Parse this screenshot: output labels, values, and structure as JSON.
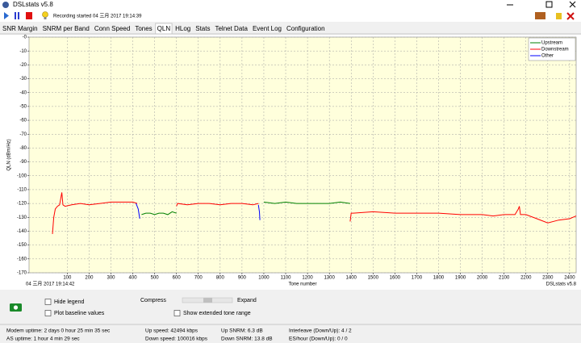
{
  "window": {
    "title": "DSLstats v5.8"
  },
  "toolbar": {
    "status": "Recording started 04 三月 2017 19:14:39"
  },
  "tabs": [
    {
      "label": "SNR Margin",
      "selected": false
    },
    {
      "label": "SNRM per Band",
      "selected": false
    },
    {
      "label": "Conn Speed",
      "selected": false
    },
    {
      "label": "Tones",
      "selected": false
    },
    {
      "label": "QLN",
      "selected": true
    },
    {
      "label": "HLog",
      "selected": false
    },
    {
      "label": "Stats",
      "selected": false
    },
    {
      "label": "Telnet Data",
      "selected": false
    },
    {
      "label": "Event Log",
      "selected": false
    },
    {
      "label": "Configuration",
      "selected": false
    }
  ],
  "chart_data": {
    "type": "line",
    "y_label": "QLN (dBm/Hz)",
    "x_label": "Tone number",
    "timestamp": "04 三月 2017 19:14:42",
    "watermark": "DSLstats v5.8",
    "xlim": [
      -75,
      2430
    ],
    "ylim": [
      -170,
      0
    ],
    "xticks": [
      100,
      200,
      300,
      400,
      500,
      600,
      700,
      800,
      900,
      1000,
      1100,
      1200,
      1300,
      1400,
      1500,
      1600,
      1700,
      1800,
      1900,
      2000,
      2100,
      2200,
      2300,
      2400
    ],
    "yticks": [
      {
        "value": 0,
        "label": "-0"
      },
      -10,
      -20,
      -30,
      -40,
      -50,
      -60,
      -70,
      -80,
      -90,
      -100,
      -110,
      -120,
      -130,
      -140,
      -150,
      -160,
      -170
    ],
    "grid": true,
    "legend": "upper right",
    "series": [
      {
        "name": "Upstream",
        "color": "#008000",
        "x": [
          440,
          460,
          480,
          500,
          520,
          540,
          560,
          580,
          600,
          800,
          1000,
          1050,
          1100,
          1150,
          1200,
          1250,
          1300,
          1350,
          1395
        ],
        "values": [
          -128,
          -127,
          -127,
          -128,
          -127,
          -127,
          -128,
          -126,
          -127,
          null,
          -119,
          -120,
          -119,
          -120,
          -120,
          -120,
          -120,
          -119,
          -120
        ]
      },
      {
        "name": "Downstream",
        "color": "#ff0000",
        "x": [
          32,
          38,
          45,
          55,
          65,
          75,
          80,
          90,
          120,
          160,
          200,
          250,
          300,
          350,
          400,
          420,
          510,
          600,
          605,
          650,
          700,
          750,
          800,
          850,
          900,
          950,
          975,
          1200,
          1395,
          1400,
          1410,
          1500,
          1600,
          1700,
          1800,
          1900,
          2000,
          2050,
          2100,
          2150,
          2165,
          2170,
          2175,
          2200,
          2250,
          2300,
          2350,
          2400,
          2430
        ],
        "values": [
          -142,
          -130,
          -124,
          -122,
          -121,
          -112,
          -121,
          -122,
          -121,
          -120,
          -121,
          -120,
          -119,
          -119,
          -119,
          -120,
          null,
          -122,
          -120,
          -121,
          -120,
          -120,
          -121,
          -120,
          -120,
          -121,
          -120,
          null,
          -133,
          -127,
          -127,
          -126,
          -127,
          -127,
          -127,
          -128,
          -128,
          -129,
          -128,
          -128,
          -124,
          -122,
          -128,
          -128,
          -131,
          -134,
          -132,
          -131,
          -129
        ]
      },
      {
        "name": "Other",
        "color": "#0000ff",
        "x": [
          415,
          425,
          432,
          700,
          975,
          980,
          982
        ],
        "values": [
          -120,
          -124,
          -131,
          null,
          -121,
          -126,
          -132
        ]
      }
    ]
  },
  "controls": {
    "checkboxes": [
      {
        "label": "Hide legend",
        "checked": false
      },
      {
        "label": "Plot baseline values",
        "checked": false
      },
      {
        "label": "Show extended tone range",
        "checked": false
      }
    ],
    "slider": {
      "left": "Compress",
      "right": "Expand"
    }
  },
  "status": {
    "rows": [
      [
        "Modem uptime: 2 days 0 hour 25 min 35 sec",
        "Up speed: 42494 kbps",
        "Up SNRM: 6.3 dB",
        "Interleave (Down/Up): 4 / 2"
      ],
      [
        "AS uptime: 1 hour 4 min 29 sec",
        "Down speed: 100016 kbps",
        "Down SNRM: 13.8 dB",
        "ES/hour (Down/Up): 0 / 0"
      ]
    ]
  }
}
